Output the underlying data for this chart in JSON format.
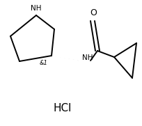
{
  "bg_color": "#ffffff",
  "line_color": "#000000",
  "text_color": "#000000",
  "hcl_label": "HCl",
  "stereo_label": "&1",
  "nh_label": "NH",
  "o_label": "O",
  "nh_ring_label": "NH",
  "fig_width": 2.05,
  "fig_height": 1.81,
  "dpi": 100,
  "lw": 1.4
}
